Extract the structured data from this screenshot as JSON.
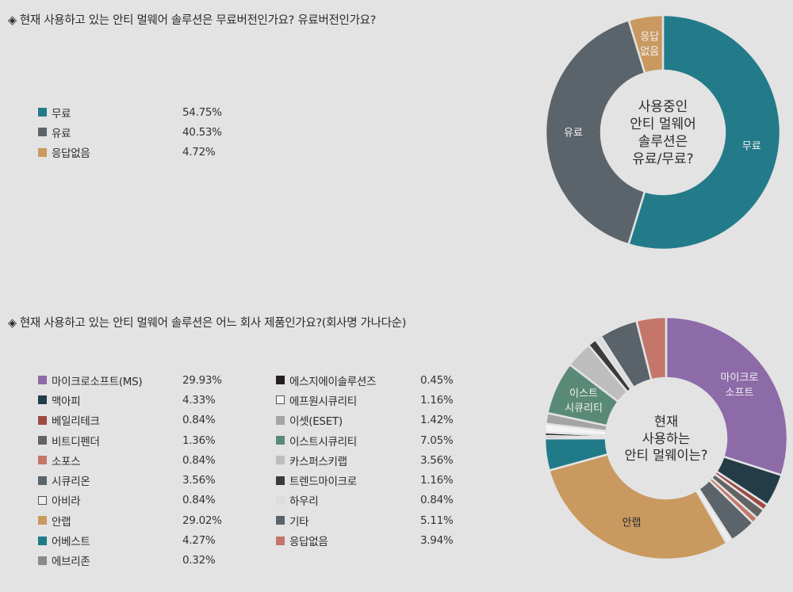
{
  "chart_data": [
    {
      "type": "pie",
      "title": "현재 사용하고 있는 안티 멀웨어 솔루션은 무료버전인가요? 유료버전인가요?",
      "center_text": [
        "사용중인",
        "안티 멀웨어",
        "솔루션은",
        "유료/무료?"
      ],
      "slices": [
        {
          "label": "무료",
          "value": 54.75,
          "value_text": "54.75%",
          "color": "#237b8a",
          "slice_label": "무료"
        },
        {
          "label": "유료",
          "value": 40.53,
          "value_text": "40.53%",
          "color": "#5c646b",
          "slice_label": "유료"
        },
        {
          "label": "응답없음",
          "value": 4.72,
          "value_text": "4.72%",
          "color": "#c9995f",
          "slice_label": "응답\n없음"
        }
      ]
    },
    {
      "type": "pie",
      "title": "현재 사용하고 있는 안티 멀웨어 솔루션은 어느 회사 제품인가요?(회사명 가나다순)",
      "center_text": [
        "현재",
        "사용하는",
        "안티 멀웨이는?"
      ],
      "slices": [
        {
          "label": "마이크로소프트(MS)",
          "value": 29.93,
          "value_text": "29.93%",
          "color": "#8d6aa8",
          "slice_label": "마이크로\n소프트"
        },
        {
          "label": "맥아피",
          "value": 4.33,
          "value_text": "4.33%",
          "color": "#243c47",
          "slice_label": ""
        },
        {
          "label": "베일리테크",
          "value": 0.84,
          "value_text": "0.84%",
          "color": "#9e4a44",
          "slice_label": ""
        },
        {
          "label": "비트디펜더",
          "value": 1.36,
          "value_text": "1.36%",
          "color": "#636363",
          "slice_label": ""
        },
        {
          "label": "소포스",
          "value": 0.84,
          "value_text": "0.84%",
          "color": "#c4766a",
          "slice_label": ""
        },
        {
          "label": "시큐리온",
          "value": 3.56,
          "value_text": "3.56%",
          "color": "#5b646b",
          "slice_label": ""
        },
        {
          "label": "아비라",
          "value": 0.84,
          "value_text": "0.84%",
          "color": "#eeeeee",
          "slice_label": ""
        },
        {
          "label": "안랩",
          "value": 29.02,
          "value_text": "29.02%",
          "color": "#c9995f",
          "slice_label": "안랩"
        },
        {
          "label": "어베스트",
          "value": 4.27,
          "value_text": "4.27%",
          "color": "#217a88",
          "slice_label": ""
        },
        {
          "label": "에브리존",
          "value": 0.32,
          "value_text": "0.32%",
          "color": "#8a8a8a",
          "slice_label": ""
        },
        {
          "label": "에스지에이솔루션즈",
          "value": 0.45,
          "value_text": "0.45%",
          "color": "#231f1e",
          "slice_label": ""
        },
        {
          "label": "에프원시큐리티",
          "value": 1.16,
          "value_text": "1.16%",
          "color": "#f4f4f4",
          "slice_label": ""
        },
        {
          "label": "이셋(ESET)",
          "value": 1.42,
          "value_text": "1.42%",
          "color": "#a4a4a4",
          "slice_label": ""
        },
        {
          "label": "이스트시큐리티",
          "value": 7.05,
          "value_text": "7.05%",
          "color": "#5a8a77",
          "slice_label": "이스트\n시큐리티"
        },
        {
          "label": "카스퍼스키랩",
          "value": 3.56,
          "value_text": "3.56%",
          "color": "#bdbdbd",
          "slice_label": ""
        },
        {
          "label": "트렌드마이크로",
          "value": 1.16,
          "value_text": "1.16%",
          "color": "#3b3b3b",
          "slice_label": ""
        },
        {
          "label": "하우리",
          "value": 0.84,
          "value_text": "0.84%",
          "color": "#dcdcdc",
          "slice_label": ""
        },
        {
          "label": "기타",
          "value": 5.11,
          "value_text": "5.11%",
          "color": "#5a636a",
          "slice_label": ""
        },
        {
          "label": "응답없음",
          "value": 3.94,
          "value_text": "3.94%",
          "color": "#c4766a",
          "slice_label": ""
        }
      ]
    }
  ]
}
